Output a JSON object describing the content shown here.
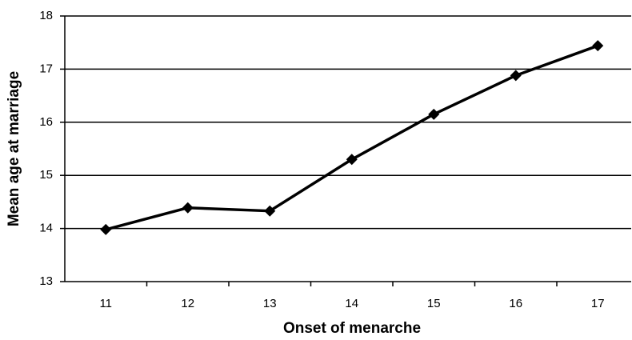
{
  "chart_data": {
    "type": "line",
    "x_label": "Onset of menarche",
    "y_label": "Mean age at marriage",
    "categories": [
      "11",
      "12",
      "13",
      "14",
      "15",
      "16",
      "17"
    ],
    "values": [
      13.98,
      14.39,
      14.33,
      15.3,
      16.15,
      16.88,
      17.44
    ],
    "color": "#000000",
    "ylim": [
      13,
      18
    ],
    "yticks": [
      13,
      14,
      15,
      16,
      17,
      18
    ],
    "grid": true
  }
}
